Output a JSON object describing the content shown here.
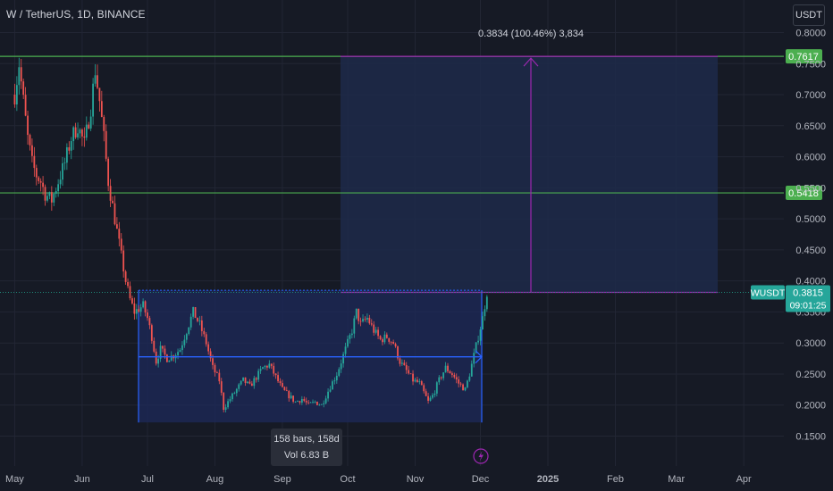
{
  "header": {
    "symbol_title": "W / TetherUS, 1D, BINANCE",
    "currency_button": "USDT"
  },
  "measure": {
    "label": "0.3834 (100.46%) 3,834",
    "tooltip_bars": "158 bars, 158d",
    "tooltip_vol": "Vol 6.83 B"
  },
  "price_tag": {
    "symbol": "WUSDT",
    "price": "0.3815",
    "countdown": "09:01:25"
  },
  "colors": {
    "background": "#161a25",
    "grid": "#222634",
    "up": "#26a69a",
    "down": "#ef5350",
    "hline": "#4caf50",
    "measure_line": "#9c27b0",
    "range_line": "#2962ff",
    "range_fill": "#1e2a5a",
    "target_fill": "#1d2a4a",
    "axis_text": "#b2b5be"
  },
  "chart_data": {
    "type": "candlestick",
    "symbol": "W / TetherUS",
    "interval": "1D",
    "exchange": "BINANCE",
    "ylim": [
      0.14,
      0.81
    ],
    "y_ticks": [
      "0.8000",
      "0.7500",
      "0.7000",
      "0.6500",
      "0.6000",
      "0.5500",
      "0.5000",
      "0.4500",
      "0.4000",
      "0.3500",
      "0.3000",
      "0.2500",
      "0.2000",
      "0.1500"
    ],
    "x_ticks": [
      "May",
      "Jun",
      "Jul",
      "Aug",
      "Sep",
      "Oct",
      "Nov",
      "Dec",
      "2025",
      "Feb",
      "Mar",
      "Apr"
    ],
    "x_tick_bold": [
      "2025"
    ],
    "horizontal_lines": [
      {
        "price": 0.7617,
        "label": "0.7617"
      },
      {
        "price": 0.5418,
        "label": "0.5418"
      }
    ],
    "last_price": 0.3815,
    "price_path": [
      [
        "2024-05-01",
        0.7
      ],
      [
        "2024-05-03",
        0.75
      ],
      [
        "2024-05-05",
        0.69
      ],
      [
        "2024-05-07",
        0.63
      ],
      [
        "2024-05-09",
        0.59
      ],
      [
        "2024-05-11",
        0.57
      ],
      [
        "2024-05-13",
        0.56
      ],
      [
        "2024-05-15",
        0.54
      ],
      [
        "2024-05-18",
        0.53
      ],
      [
        "2024-05-21",
        0.56
      ],
      [
        "2024-05-24",
        0.59
      ],
      [
        "2024-05-27",
        0.63
      ],
      [
        "2024-05-30",
        0.65
      ],
      [
        "2024-06-02",
        0.62
      ],
      [
        "2024-06-05",
        0.68
      ],
      [
        "2024-06-07",
        0.74
      ],
      [
        "2024-06-09",
        0.69
      ],
      [
        "2024-06-11",
        0.63
      ],
      [
        "2024-06-13",
        0.56
      ],
      [
        "2024-06-15",
        0.52
      ],
      [
        "2024-06-17",
        0.48
      ],
      [
        "2024-06-19",
        0.44
      ],
      [
        "2024-06-21",
        0.4
      ],
      [
        "2024-06-23",
        0.37
      ],
      [
        "2024-06-25",
        0.35
      ],
      [
        "2024-06-27",
        0.355
      ],
      [
        "2024-06-29",
        0.36
      ],
      [
        "2024-07-01",
        0.34
      ],
      [
        "2024-07-03",
        0.31
      ],
      [
        "2024-07-05",
        0.27
      ],
      [
        "2024-07-07",
        0.29
      ],
      [
        "2024-07-10",
        0.275
      ],
      [
        "2024-07-13",
        0.28
      ],
      [
        "2024-07-16",
        0.29
      ],
      [
        "2024-07-19",
        0.32
      ],
      [
        "2024-07-22",
        0.35
      ],
      [
        "2024-07-25",
        0.33
      ],
      [
        "2024-07-28",
        0.3
      ],
      [
        "2024-07-31",
        0.26
      ],
      [
        "2024-08-03",
        0.24
      ],
      [
        "2024-08-05",
        0.195
      ],
      [
        "2024-08-08",
        0.21
      ],
      [
        "2024-08-11",
        0.225
      ],
      [
        "2024-08-14",
        0.24
      ],
      [
        "2024-08-17",
        0.23
      ],
      [
        "2024-08-20",
        0.245
      ],
      [
        "2024-08-23",
        0.26
      ],
      [
        "2024-08-26",
        0.265
      ],
      [
        "2024-08-29",
        0.245
      ],
      [
        "2024-09-01",
        0.225
      ],
      [
        "2024-09-04",
        0.215
      ],
      [
        "2024-09-07",
        0.205
      ],
      [
        "2024-09-10",
        0.21
      ],
      [
        "2024-09-13",
        0.2
      ],
      [
        "2024-09-16",
        0.205
      ],
      [
        "2024-09-19",
        0.2
      ],
      [
        "2024-09-21",
        0.215
      ],
      [
        "2024-09-23",
        0.23
      ],
      [
        "2024-09-26",
        0.25
      ],
      [
        "2024-09-29",
        0.28
      ],
      [
        "2024-10-01",
        0.3
      ],
      [
        "2024-10-03",
        0.32
      ],
      [
        "2024-10-05",
        0.35
      ],
      [
        "2024-10-07",
        0.33
      ],
      [
        "2024-10-10",
        0.34
      ],
      [
        "2024-10-13",
        0.32
      ],
      [
        "2024-10-16",
        0.305
      ],
      [
        "2024-10-19",
        0.31
      ],
      [
        "2024-10-22",
        0.3
      ],
      [
        "2024-10-25",
        0.27
      ],
      [
        "2024-10-28",
        0.255
      ],
      [
        "2024-10-31",
        0.24
      ],
      [
        "2024-11-03",
        0.235
      ],
      [
        "2024-11-05",
        0.22
      ],
      [
        "2024-11-07",
        0.205
      ],
      [
        "2024-11-09",
        0.215
      ],
      [
        "2024-11-12",
        0.24
      ],
      [
        "2024-11-15",
        0.26
      ],
      [
        "2024-11-18",
        0.25
      ],
      [
        "2024-11-21",
        0.235
      ],
      [
        "2024-11-24",
        0.225
      ],
      [
        "2024-11-26",
        0.25
      ],
      [
        "2024-11-28",
        0.28
      ],
      [
        "2024-11-30",
        0.31
      ],
      [
        "2024-12-02",
        0.34
      ],
      [
        "2024-12-04",
        0.3815
      ]
    ]
  }
}
